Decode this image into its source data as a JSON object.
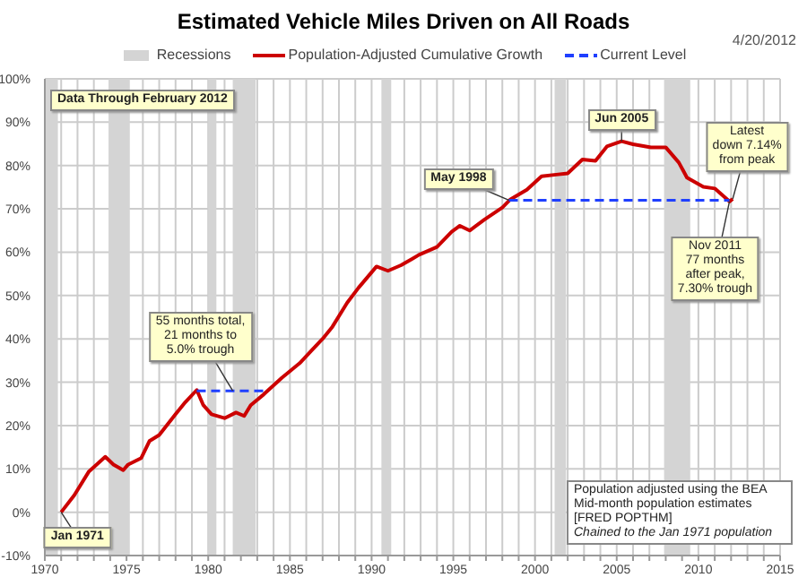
{
  "chart_data": {
    "type": "line",
    "title": "Estimated Vehicle Miles Driven on All Roads",
    "xlim": [
      1970,
      2015
    ],
    "xticks": [
      1970,
      {
        "value": 1971,
        "label": null
      },
      {
        "value": 1972,
        "label": null
      },
      {
        "value": 1973,
        "label": null
      },
      {
        "value": 1974,
        "label": null
      },
      1975,
      {
        "value": 1976,
        "label": null
      },
      {
        "value": 1977,
        "label": null
      },
      {
        "value": 1978,
        "label": null
      },
      {
        "value": 1979,
        "label": null
      },
      1980,
      {
        "value": 1981,
        "label": null
      },
      {
        "value": 1982,
        "label": null
      },
      {
        "value": 1983,
        "label": null
      },
      {
        "value": 1984,
        "label": null
      },
      1985,
      {
        "value": 1986,
        "label": null
      },
      {
        "value": 1987,
        "label": null
      },
      {
        "value": 1988,
        "label": null
      },
      {
        "value": 1989,
        "label": null
      },
      1990,
      {
        "value": 1991,
        "label": null
      },
      {
        "value": 1992,
        "label": null
      },
      {
        "value": 1993,
        "label": null
      },
      {
        "value": 1994,
        "label": null
      },
      1995,
      {
        "value": 1996,
        "label": null
      },
      {
        "value": 1997,
        "label": null
      },
      {
        "value": 1998,
        "label": null
      },
      {
        "value": 1999,
        "label": null
      },
      2000,
      {
        "value": 2001,
        "label": null
      },
      {
        "value": 2002,
        "label": null
      },
      {
        "value": 2003,
        "label": null
      },
      {
        "value": 2004,
        "label": null
      },
      2005,
      {
        "value": 2006,
        "label": null
      },
      {
        "value": 2007,
        "label": null
      },
      {
        "value": 2008,
        "label": null
      },
      {
        "value": 2009,
        "label": null
      },
      2010,
      {
        "value": 2011,
        "label": null
      },
      {
        "value": 2012,
        "label": null
      },
      {
        "value": 2013,
        "label": null
      },
      {
        "value": 2014,
        "label": null
      },
      2015
    ],
    "ylim": [
      -10,
      100
    ],
    "yticks": [
      {
        "value": -10,
        "label": "-10%"
      },
      {
        "value": 0,
        "label": "0%"
      },
      {
        "value": 10,
        "label": "10%"
      },
      {
        "value": 20,
        "label": "20%"
      },
      {
        "value": 30,
        "label": "30%"
      },
      {
        "value": 40,
        "label": "40%"
      },
      {
        "value": 50,
        "label": "50%"
      },
      {
        "value": 60,
        "label": "60%"
      },
      {
        "value": 70,
        "label": "70%"
      },
      {
        "value": 80,
        "label": "80%"
      },
      {
        "value": 90,
        "label": "90%"
      },
      {
        "value": 100,
        "label": "100%"
      }
    ],
    "grid": true,
    "legend": "top",
    "series": [
      {
        "name": "Population-Adjusted Cumulative Growth",
        "color": "#cc0000",
        "line_style": "solid",
        "x": [
          1971.0,
          1971.8,
          1972.7,
          1973.7,
          1974.2,
          1974.8,
          1975.1,
          1975.9,
          1976.4,
          1977.0,
          1978.0,
          1978.6,
          1979.3,
          1979.7,
          1980.2,
          1981.0,
          1981.7,
          1982.2,
          1982.6,
          1983.4,
          1984.5,
          1985.6,
          1986.3,
          1987.0,
          1987.6,
          1988.5,
          1989.2,
          1990.3,
          1991.0,
          1991.8,
          1992.5,
          1992.9,
          1994.0,
          1994.9,
          1995.4,
          1996.0,
          1996.9,
          1998.0,
          1998.5,
          1999.5,
          2000.4,
          2001.3,
          2002.0,
          2002.9,
          2003.7,
          2004.4,
          2005.3,
          2006.0,
          2007.1,
          2008.0,
          2008.8,
          2009.3,
          2010.3,
          2011.0,
          2011.9,
          2012.1
        ],
        "values": [
          0,
          3.9,
          9.4,
          12.8,
          11,
          9.7,
          11,
          12.5,
          16.4,
          17.8,
          22.6,
          25.4,
          28.2,
          24.7,
          22.6,
          21.7,
          23,
          22.2,
          24.7,
          27.2,
          31,
          34.4,
          37.2,
          40,
          42.8,
          48.3,
          51.8,
          56.7,
          55.7,
          57,
          58.5,
          59.4,
          61.2,
          64.7,
          66.1,
          65,
          67.5,
          70.3,
          72.2,
          74.4,
          77.5,
          77.9,
          78.2,
          81.4,
          81.1,
          84.4,
          85.6,
          84.9,
          84.2,
          84.2,
          80.7,
          77.2,
          75.1,
          74.7,
          71.7,
          72.3
        ]
      },
      {
        "name": "Current Level",
        "color": "#1f3fff",
        "line_style": "dashed",
        "x": [
          1979.3,
          1983.6
        ],
        "values": [
          28,
          28
        ]
      },
      {
        "color": "#1f3fff",
        "line_style": "dashed",
        "x": [
          1998.4,
          2011.9
        ],
        "values": [
          72,
          72
        ]
      }
    ],
    "bands": [
      {
        "axis": "x",
        "from": 1970.0,
        "to": 1970.8,
        "label": "Recessions",
        "color": "#d4d4d4"
      },
      {
        "axis": "x",
        "from": 1973.9,
        "to": 1975.2,
        "color": "#d4d4d4"
      },
      {
        "axis": "x",
        "from": 1980.0,
        "to": 1980.5,
        "color": "#d4d4d4"
      },
      {
        "axis": "x",
        "from": 1981.5,
        "to": 1982.9,
        "color": "#d4d4d4"
      },
      {
        "axis": "x",
        "from": 1990.6,
        "to": 1991.2,
        "color": "#d4d4d4"
      },
      {
        "axis": "x",
        "from": 2001.2,
        "to": 2001.9,
        "color": "#d4d4d4"
      },
      {
        "axis": "x",
        "from": 2007.9,
        "to": 2009.5,
        "color": "#d4d4d4"
      }
    ],
    "annotations": [
      "Data Through February 2012",
      "Population adjusted using the BEA\nMid-month population estimates\n[FRED POPTHM]\nChained to the Jan 1971 population",
      "4/20/2012",
      {
        "text": "Jan 1971",
        "x": 1971.0,
        "y": 0
      },
      {
        "text": "55 months total,\n21 months to\n5.0% trough",
        "x": 1981.5,
        "y": 28
      },
      {
        "text": "May 1998",
        "x": 1998.4,
        "y": 72
      },
      {
        "text": "Jun 2005",
        "x": 2005.3,
        "y": 85.6
      },
      {
        "text": "Latest\ndown 7.14%\nfrom peak",
        "x": 2012.1,
        "y": 72.3
      },
      {
        "text": "Nov 2011\n77 months\nafter peak,\n7.30% trough",
        "x": 2011.9,
        "y": 71.7
      }
    ]
  }
}
